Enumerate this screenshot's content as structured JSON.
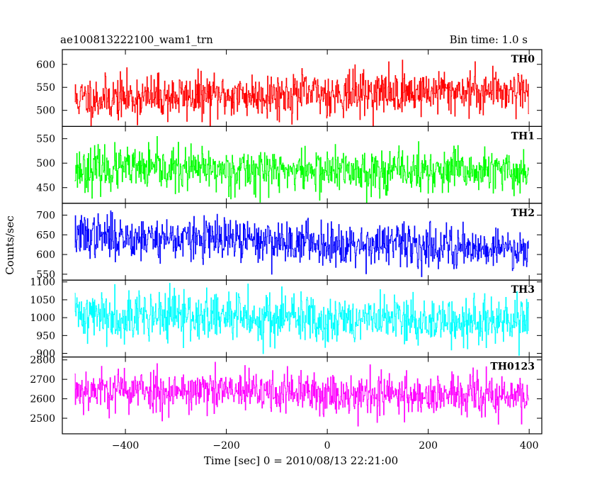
{
  "chart_data": {
    "type": "line",
    "title": "ae100813222100_wam1_trn",
    "bin_time": "Bin time: 1.0 s",
    "xlabel": "Time [sec] 0 = 2010/08/13 22:21:00",
    "ylabel": "Counts/sec",
    "xlim": [
      -525,
      425
    ],
    "x_start": -500,
    "x_end": 399,
    "x_step": 1,
    "x_ticks": [
      -400,
      -200,
      0,
      200,
      400
    ],
    "x_tick_labels": [
      "−400",
      "−200",
      "0",
      "200",
      "400"
    ],
    "grid": false,
    "panels": [
      {
        "name": "TH0",
        "color": "#ff0000",
        "ylim": [
          465,
          632
        ],
        "yticks": [
          500,
          550,
          600
        ],
        "mean_start": 525,
        "mean_end": 545,
        "spread": 24,
        "seed": 11
      },
      {
        "name": "TH1",
        "color": "#00ff00",
        "ylim": [
          418,
          575
        ],
        "yticks": [
          450,
          500,
          550
        ],
        "mean_start": 488,
        "mean_end": 482,
        "spread": 22,
        "seed": 23
      },
      {
        "name": "TH2",
        "color": "#0000ff",
        "ylim": [
          535,
          730
        ],
        "yticks": [
          550,
          600,
          650,
          700
        ],
        "mean_start": 648,
        "mean_end": 615,
        "spread": 27,
        "seed": 37
      },
      {
        "name": "TH3",
        "color": "#00ffff",
        "ylim": [
          890,
          1105
        ],
        "yticks": [
          900,
          950,
          1000,
          1050,
          1100
        ],
        "mean_start": 1010,
        "mean_end": 985,
        "spread": 35,
        "seed": 41
      },
      {
        "name": "TH0123",
        "color": "#ff00ff",
        "ylim": [
          2420,
          2815
        ],
        "yticks": [
          2500,
          2600,
          2700,
          2800
        ],
        "mean_start": 2650,
        "mean_end": 2610,
        "spread": 55,
        "seed": 53
      }
    ]
  }
}
